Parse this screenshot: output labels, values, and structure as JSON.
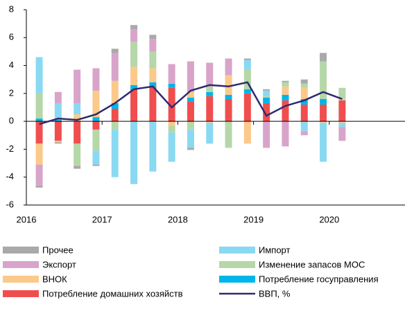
{
  "chart_data": {
    "type": "bar",
    "stacked": true,
    "x": [
      2016.17,
      2016.42,
      2016.67,
      2016.92,
      2017.17,
      2017.42,
      2017.67,
      2017.92,
      2018.17,
      2018.42,
      2018.67,
      2018.92,
      2019.17,
      2019.42,
      2019.67,
      2019.92,
      2020.17
    ],
    "xlim": [
      2016,
      2021
    ],
    "xticks": [
      2016,
      2017,
      2018,
      2019,
      2020
    ],
    "ylim": [
      -6,
      8
    ],
    "yticks": [
      -6,
      -4,
      -2,
      0,
      2,
      4,
      6,
      8
    ],
    "grid": false,
    "series": [
      {
        "name": "Потребление домашних хозяйств",
        "color": "#f04e4e",
        "values": [
          -1.6,
          -1.4,
          -1.6,
          -0.6,
          0.9,
          2.3,
          2.5,
          2.4,
          1.4,
          1.8,
          1.6,
          2.0,
          1.3,
          1.5,
          1.2,
          1.2,
          1.5
        ]
      },
      {
        "name": "Потребление госуправления",
        "color": "#00b5ea",
        "values": [
          0.2,
          0.1,
          0,
          0.3,
          0.4,
          0.3,
          0.3,
          0.3,
          0.3,
          0.3,
          0.3,
          0.3,
          0.4,
          0.4,
          0.4,
          0.4,
          0
        ]
      },
      {
        "name": "ВНОК",
        "color": "#fbc98a",
        "values": [
          -1.5,
          -0.1,
          0.5,
          1.9,
          1.6,
          1.3,
          1.0,
          -0.3,
          0.4,
          -0.1,
          1.4,
          -1.6,
          0,
          0.6,
          0.8,
          -0.1,
          -0.1
        ]
      },
      {
        "name": "Изменение запасов МОС",
        "color": "#b6d7a8",
        "values": [
          1.8,
          0,
          -1.6,
          -1.5,
          -0.6,
          1.8,
          1.2,
          -0.5,
          -0.6,
          0.4,
          -1.9,
          1.4,
          0.1,
          0.3,
          0.3,
          2.7,
          0.9
        ]
      },
      {
        "name": "Импорт",
        "color": "#8ad9f2",
        "values": [
          2.6,
          1.2,
          0.8,
          -1.0,
          -3.4,
          -4.5,
          -3.6,
          -2.1,
          -1.3,
          -1.5,
          0,
          0.7,
          0.4,
          0,
          -0.7,
          -2.8,
          -0.3
        ]
      },
      {
        "name": "Экспорт",
        "color": "#d8a4ca",
        "values": [
          -1.5,
          0.8,
          2.4,
          1.6,
          2.0,
          0.9,
          0.9,
          1.4,
          2.2,
          1.7,
          1.2,
          0,
          -1.9,
          -1.8,
          -0.3,
          0,
          -1.0
        ]
      },
      {
        "name": "Прочее",
        "color": "#a9a9a9",
        "values": [
          -0.15,
          -0.1,
          -0.2,
          -0.1,
          0.3,
          0.3,
          0.3,
          0,
          -0.15,
          0,
          0,
          0.1,
          0.1,
          0.1,
          0.3,
          0.6,
          0
        ]
      },
      {
        "name": "ВВП, %",
        "color": "#2e2a6e",
        "type": "line",
        "values": [
          -0.2,
          0.2,
          0.1,
          0.5,
          1.3,
          2.3,
          2.5,
          1.0,
          2.2,
          2.6,
          2.5,
          2.8,
          0.4,
          1.1,
          1.5,
          2.1,
          1.6
        ]
      }
    ]
  }
}
